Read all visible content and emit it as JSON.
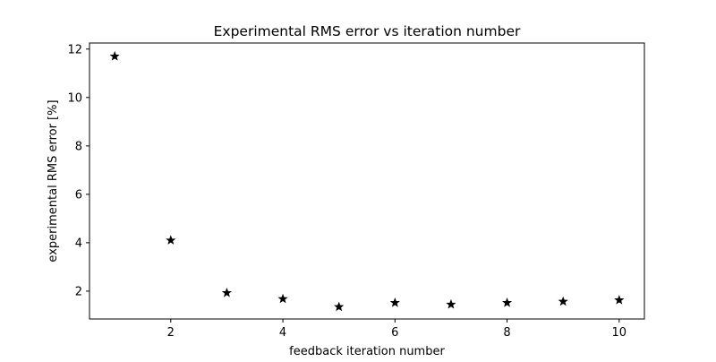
{
  "chart_data": {
    "type": "scatter",
    "title": "Experimental RMS error vs iteration number",
    "xlabel": "feedback iteration number",
    "ylabel": "experimental RMS error [%]",
    "xlim": [
      0.55,
      10.45
    ],
    "ylim": [
      0.85,
      12.25
    ],
    "xticks": [
      2,
      4,
      6,
      8,
      10
    ],
    "yticks": [
      2,
      4,
      6,
      8,
      10,
      12
    ],
    "grid": false,
    "legend": "none",
    "marker": "star",
    "marker_color": "#000000",
    "series": [
      {
        "x": [
          1,
          2,
          3,
          4,
          5,
          6,
          7,
          8,
          9,
          10
        ],
        "y": [
          11.7,
          4.1,
          1.93,
          1.68,
          1.35,
          1.52,
          1.45,
          1.52,
          1.57,
          1.63
        ]
      }
    ]
  }
}
